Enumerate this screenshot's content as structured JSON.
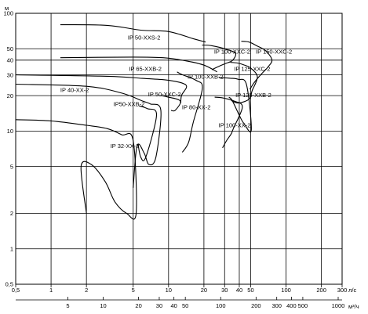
{
  "chart_data": {
    "type": "line",
    "title": "",
    "x_axis": {
      "scale": "log",
      "range": [
        0.5,
        300
      ],
      "ticks": [
        "0,5",
        "1",
        "2",
        "5",
        "10",
        "20",
        "30",
        "40",
        "50",
        "100",
        "200",
        "300"
      ],
      "unit": "л/с"
    },
    "x2_axis": {
      "scale": "log",
      "ticks": [
        "5",
        "10",
        "20",
        "30",
        "40",
        "50",
        "100",
        "200",
        "300",
        "400",
        "500",
        "1000"
      ],
      "unit": "м³/ч"
    },
    "y_axis": {
      "scale": "log",
      "range": [
        0.5,
        100
      ],
      "ticks": [
        "0,5",
        "1",
        "2",
        "5",
        "10",
        "20",
        "30",
        "40",
        "50",
        "100"
      ],
      "unit": "м"
    },
    "grid": true,
    "series": [
      {
        "name": "IP 32-XX-2",
        "label_x": 3.2,
        "label_y": 7.2,
        "x": [
          0.5,
          1,
          2,
          3,
          4,
          5,
          5.3,
          4.4,
          3.5,
          2.9,
          2.2,
          1.8,
          2.0
        ],
        "y": [
          12.5,
          12.2,
          11.2,
          10.5,
          9.3,
          8.3,
          2.0,
          2.0,
          2.5,
          3.7,
          5.2,
          5.0,
          2.0
        ]
      },
      {
        "name": "IP 40-XX-2",
        "label_x": 1.2,
        "label_y": 21.5,
        "x": [
          0.5,
          2,
          4,
          6,
          7,
          8.6,
          7.8,
          6.8,
          6.2,
          5.4,
          5.0
        ],
        "y": [
          25,
          24,
          21,
          18,
          17,
          15,
          6.0,
          5.2,
          6.5,
          7.5,
          3.3
        ]
      },
      {
        "name": "IP50-XXB-2",
        "label_x": 3.4,
        "label_y": 16.3,
        "x": [
          5.6,
          6.6,
          7.9,
          6.4,
          5.8,
          5.5
        ],
        "y": [
          16.4,
          15.5,
          13.7,
          6.0,
          6.0,
          7.8
        ]
      },
      {
        "name": "IP 50-XXC-2",
        "label_x": 6.7,
        "label_y": 19.8,
        "x": [
          8.6,
          9.8,
          12.6,
          11.4,
          10.5
        ],
        "y": [
          20,
          19.5,
          18,
          15,
          15
        ]
      },
      {
        "name": "IP 65-XXB-2",
        "label_x": 4.6,
        "label_y": 32.5,
        "x": [
          0.5,
          3,
          6,
          10,
          14.1,
          12.9,
          12.7
        ],
        "y": [
          30,
          29.2,
          28,
          27,
          24.5,
          20.1,
          17.3
        ]
      },
      {
        "name": "IP 50-XXS-2",
        "label_x": 4.5,
        "label_y": 60,
        "x": [
          1.2,
          3,
          5.8,
          10,
          16.1,
          20.7
        ],
        "y": [
          80,
          79,
          72,
          70,
          61,
          57
        ]
      },
      {
        "name": "IP 80-XX-2",
        "label_x": 13,
        "label_y": 15.3,
        "x": [
          11.8,
          12.9,
          17.1,
          19.4,
          16.2,
          14.8,
          13.1
        ],
        "y": [
          31.8,
          30.3,
          27.0,
          23.1,
          11.8,
          8.0,
          6.6
        ]
      },
      {
        "name": "IP 100-XXB-2",
        "label_x": 14.5,
        "label_y": 27.8,
        "x": [
          1.2,
          5,
          9,
          14,
          20,
          25.9
        ],
        "y": [
          42,
          42.5,
          42,
          39.5,
          36.3,
          31.8
        ]
      },
      {
        "name": "IP 100-XXC-2",
        "label_x": 24.4,
        "label_y": 45.5,
        "x": [
          19.3,
          23.2,
          31.3,
          37.2,
          34.9,
          30.4,
          26.0,
          23.4
        ],
        "y": [
          53.7,
          53.1,
          49.4,
          45.6,
          39.7,
          37.4,
          35.0,
          33.2
        ]
      },
      {
        "name": "IP 100-XX-2",
        "label_x": 26.7,
        "label_y": 10.8,
        "x": [
          24.7,
          28.4,
          36.1,
          42.5,
          35.6,
          34.2,
          31.2,
          28.8
        ],
        "y": [
          19.4,
          19.2,
          18.0,
          16.0,
          10.5,
          9.5,
          8.3,
          7.2
        ]
      },
      {
        "name": "IP 125-XXB-2",
        "label_x": 37.1,
        "label_y": 19.4,
        "x": [
          26.9,
          33.6,
          39.1,
          46.1,
          50.6,
          43.8,
          40.3,
          34.8,
          32.6
        ],
        "y": [
          28.4,
          28.1,
          27.5,
          24.7,
          10.2,
          11.6,
          13.4,
          18.2,
          19.4
        ]
      },
      {
        "name": "IP 125-XXC-2",
        "label_x": 36.1,
        "label_y": 32.5,
        "x": [
          33.6,
          38.7,
          43.3,
          50.0,
          57.0,
          51.5,
          48.5,
          39.3,
          34.1
        ],
        "y": [
          38.3,
          37.8,
          36.6,
          34.3,
          28.8,
          22.1,
          18.7,
          17.3,
          18.2
        ]
      },
      {
        "name": "IP 150-XXC-2",
        "label_x": 55.3,
        "label_y": 45.6,
        "x": [
          41.6,
          48.4,
          56.6,
          67.2,
          75.9,
          70.2,
          62.6,
          57.2,
          52.8,
          49.2
        ],
        "y": [
          57.9,
          57.0,
          52.9,
          48.0,
          40.2,
          35.0,
          31.0,
          28.0,
          25.3,
          22.6
        ]
      }
    ]
  }
}
